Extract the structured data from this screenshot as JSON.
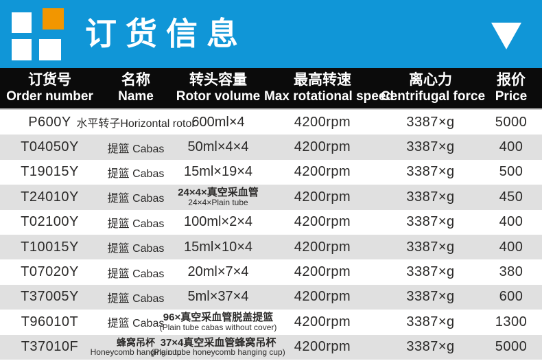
{
  "banner": {
    "title": "订货信息",
    "colors": {
      "background": "#1096d7",
      "logo_orange": "#f29600",
      "logo_white": "#ffffff"
    }
  },
  "table": {
    "colors": {
      "header_bg": "#0b0b0b",
      "row_alt_bg": "#e0e0e0",
      "text": "#2b2a29"
    },
    "columns": [
      {
        "zh": "订货号",
        "en": "Order number"
      },
      {
        "zh": "名称",
        "en": "Name"
      },
      {
        "zh": "转头容量",
        "en": "Rotor volume"
      },
      {
        "zh": "最高转速",
        "en": "Max rotational speed"
      },
      {
        "zh": "离心力",
        "en": "Centrifugal force"
      },
      {
        "zh": "报价",
        "en": "Price"
      }
    ],
    "rows": [
      {
        "order": "P600Y",
        "name": "水平转子Horizontal rotor",
        "name2": "",
        "volume": "600ml×4",
        "volume2": "",
        "speed": "4200rpm",
        "force": "3387×g",
        "price": "5000"
      },
      {
        "order": "T04050Y",
        "name": "提篮 Cabas",
        "name2": "",
        "volume": "50ml×4×4",
        "volume2": "",
        "speed": "4200rpm",
        "force": "3387×g",
        "price": "400"
      },
      {
        "order": "T19015Y",
        "name": "提篮 Cabas",
        "name2": "",
        "volume": "15ml×19×4",
        "volume2": "",
        "speed": "4200rpm",
        "force": "3387×g",
        "price": "500"
      },
      {
        "order": "T24010Y",
        "name": "提篮 Cabas",
        "name2": "",
        "volume": "24×4×真空采血管",
        "volume2": "24×4×Plain tube",
        "speed": "4200rpm",
        "force": "3387×g",
        "price": "450"
      },
      {
        "order": "T02100Y",
        "name": "提篮 Cabas",
        "name2": "",
        "volume": "100ml×2×4",
        "volume2": "",
        "speed": "4200rpm",
        "force": "3387×g",
        "price": "400"
      },
      {
        "order": "T10015Y",
        "name": "提篮 Cabas",
        "name2": "",
        "volume": "15ml×10×4",
        "volume2": "",
        "speed": "4200rpm",
        "force": "3387×g",
        "price": "400"
      },
      {
        "order": "T07020Y",
        "name": "提篮 Cabas",
        "name2": "",
        "volume": "20ml×7×4",
        "volume2": "",
        "speed": "4200rpm",
        "force": "3387×g",
        "price": "380"
      },
      {
        "order": "T37005Y",
        "name": "提篮 Cabas",
        "name2": "",
        "volume": "5ml×37×4",
        "volume2": "",
        "speed": "4200rpm",
        "force": "3387×g",
        "price": "600"
      },
      {
        "order": "T96010T",
        "name": "提篮 Cabas",
        "name2": "",
        "volume": "96×真空采血管脱盖提篮",
        "volume2": "(Plain tube cabas without cover)",
        "speed": "4200rpm",
        "force": "3387×g",
        "price": "1300"
      },
      {
        "order": "T37010F",
        "name": "蜂窝吊杯",
        "name2": "Honeycomb hanging cup",
        "volume": "37×4真空采血管蜂窝吊杯",
        "volume2": "(Plain tube honeycomb hanging cup)",
        "speed": "4200rpm",
        "force": "3387×g",
        "price": "5000"
      }
    ]
  }
}
